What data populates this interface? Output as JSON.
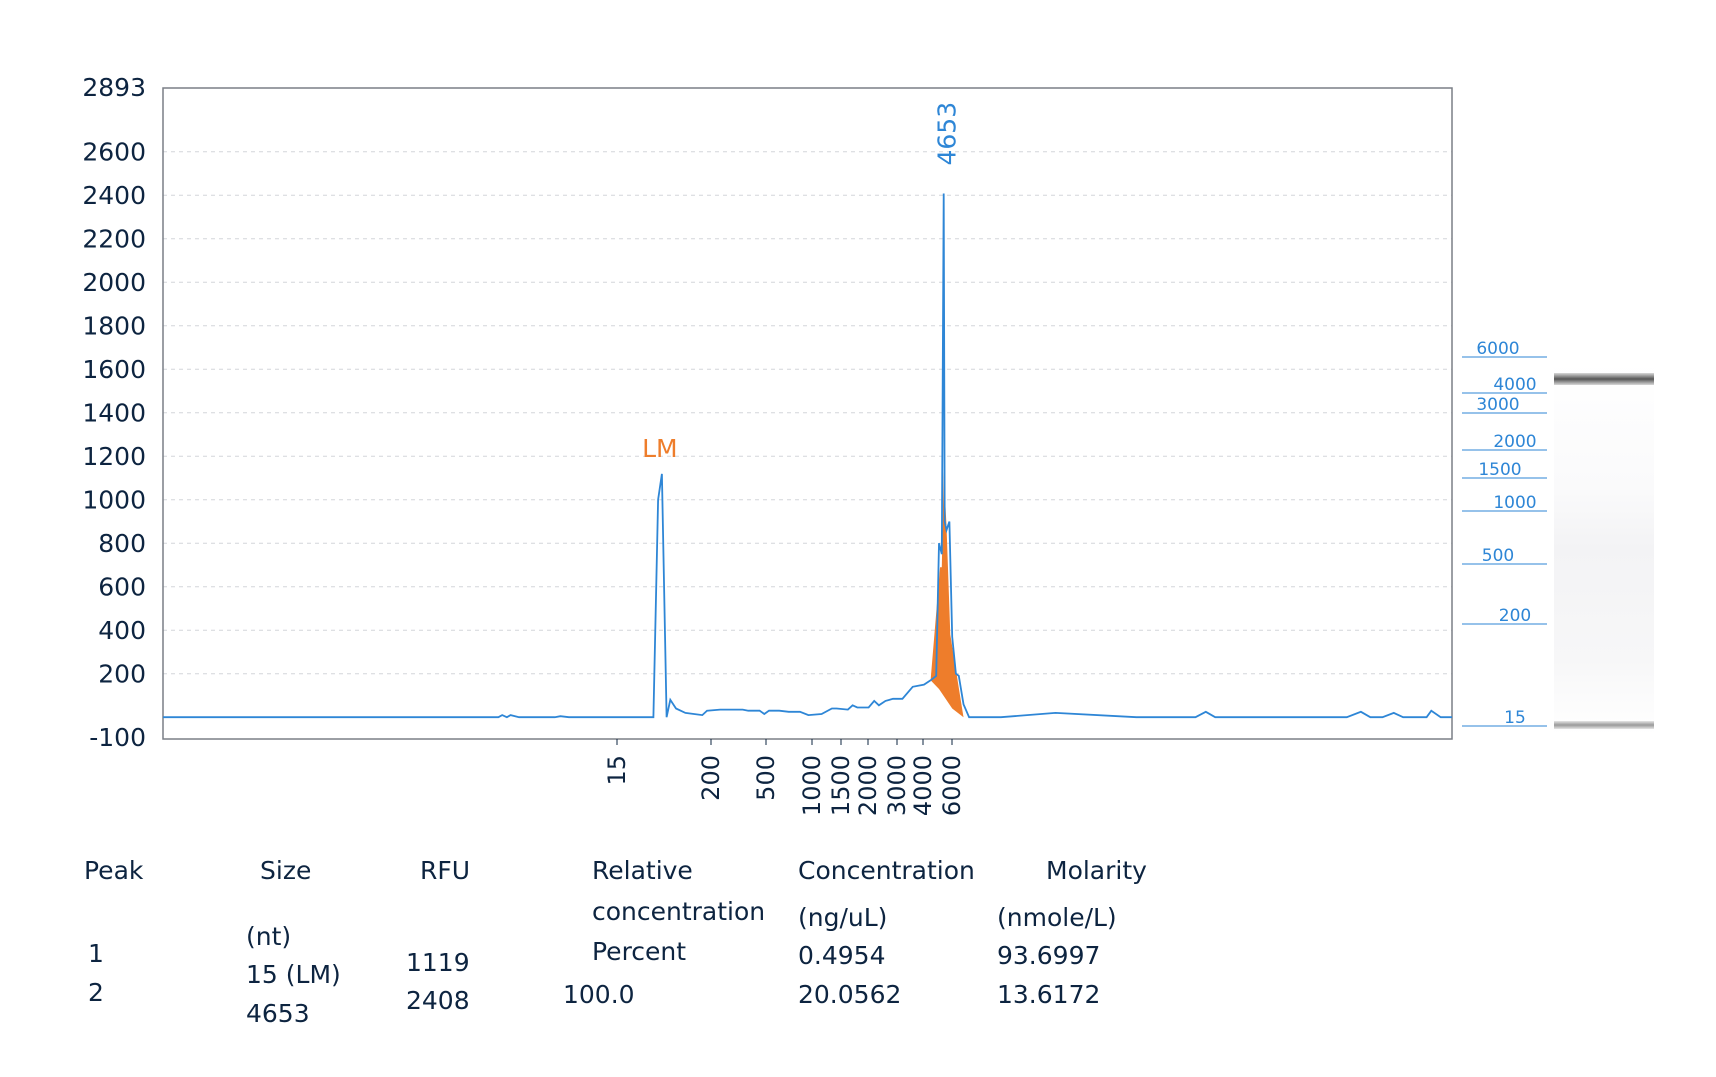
{
  "chart_data": {
    "type": "line",
    "y_axis": {
      "range": [
        -100,
        2893
      ],
      "top_label": "2893",
      "bottom_label": "-100",
      "ticks": [
        200,
        400,
        600,
        800,
        1000,
        1200,
        1400,
        1600,
        1800,
        2000,
        2200,
        2400,
        2600
      ],
      "grid": true
    },
    "x_axis": {
      "scale": "size ladder (nt)",
      "tick_labels": [
        "15",
        "200",
        "500",
        "1000",
        "1500",
        "2000",
        "3000",
        "4000",
        "6000"
      ]
    },
    "series": [
      {
        "color": "#2e86d6",
        "points": [
          [
            0,
            0
          ],
          [
            0.357,
            0
          ],
          [
            0.361,
            10
          ],
          [
            0.366,
            0
          ],
          [
            0.37,
            10
          ],
          [
            0.379,
            0
          ],
          [
            0.417,
            0
          ],
          [
            0.423,
            5
          ],
          [
            0.432,
            0
          ],
          [
            0.522,
            0
          ],
          [
            0.527,
            1000
          ],
          [
            0.531,
            1119
          ],
          [
            0.536,
            0
          ],
          [
            0.54,
            80
          ],
          [
            0.546,
            40
          ],
          [
            0.556,
            20
          ],
          [
            0.574,
            10
          ],
          [
            0.579,
            30
          ],
          [
            0.593,
            35
          ],
          [
            0.617,
            35
          ],
          [
            0.623,
            30
          ],
          [
            0.635,
            30
          ],
          [
            0.64,
            15
          ],
          [
            0.645,
            30
          ],
          [
            0.656,
            30
          ],
          [
            0.666,
            25
          ],
          [
            0.678,
            25
          ],
          [
            0.687,
            10
          ],
          [
            0.701,
            15
          ],
          [
            0.712,
            40
          ],
          [
            0.717,
            40
          ],
          [
            0.729,
            35
          ],
          [
            0.734,
            55
          ],
          [
            0.739,
            45
          ],
          [
            0.751,
            45
          ],
          [
            0.757,
            75
          ],
          [
            0.762,
            55
          ],
          [
            0.769,
            75
          ],
          [
            0.777,
            85
          ],
          [
            0.787,
            85
          ],
          [
            0.798,
            140
          ],
          [
            0.81,
            150
          ],
          [
            0.817,
            170
          ],
          [
            0.823,
            190
          ],
          [
            0.826,
            800
          ],
          [
            0.829,
            750
          ],
          [
            0.831,
            2408
          ],
          [
            0.832,
            900
          ],
          [
            0.834,
            860
          ],
          [
            0.837,
            900
          ],
          [
            0.84,
            370
          ],
          [
            0.844,
            200
          ],
          [
            0.847,
            190
          ],
          [
            0.852,
            60
          ],
          [
            0.858,
            0
          ],
          [
            0.892,
            0
          ],
          [
            0.95,
            20
          ],
          [
            1.036,
            0
          ],
          [
            1.099,
            0
          ],
          [
            1.11,
            25
          ],
          [
            1.12,
            0
          ],
          [
            1.26,
            0
          ],
          [
            1.275,
            25
          ],
          [
            1.285,
            0
          ],
          [
            1.298,
            0
          ],
          [
            1.31,
            20
          ],
          [
            1.32,
            0
          ],
          [
            1.345,
            0
          ],
          [
            1.35,
            30
          ],
          [
            1.36,
            0
          ],
          [
            1.372,
            0
          ]
        ]
      }
    ],
    "filled_peak": {
      "color": "#ee7d2b",
      "points": [
        [
          0.817,
          170
        ],
        [
          0.827,
          690
        ],
        [
          0.829,
          690
        ],
        [
          0.831,
          1130
        ],
        [
          0.834,
          880
        ],
        [
          0.838,
          380
        ],
        [
          0.852,
          0
        ],
        [
          0.84,
          40
        ],
        [
          0.826,
          130
        ],
        [
          0.817,
          170
        ]
      ]
    },
    "annotations": [
      {
        "text": "LM",
        "x": 0.531,
        "y": 1119,
        "color": "#ee7d2b"
      },
      {
        "text": "4653",
        "x": 0.831,
        "y": 2408,
        "color": "#2e86d6"
      }
    ],
    "ladder": {
      "labels": [
        "6000",
        "4000",
        "3000",
        "2000",
        "1500",
        "1000",
        "500",
        "200",
        "15"
      ]
    }
  },
  "table": {
    "headers": {
      "peak": "Peak",
      "size": "Size",
      "size_unit": "(nt)",
      "rfu": "RFU",
      "relative_line1": "Relative",
      "relative_line2": "concentration",
      "relative_line3": "Percent",
      "concentration": "Concentration",
      "concentration_unit": "(ng/uL)",
      "molarity": "Molarity",
      "molarity_unit": "(nmole/L)"
    },
    "rows": [
      {
        "peak": "1",
        "size": "15 (LM)",
        "rfu": "1119",
        "relative": "",
        "concentration": "0.4954",
        "molarity": "93.6997"
      },
      {
        "peak": "2",
        "size": "4653",
        "rfu": "2408",
        "relative": "100.0",
        "concentration": "20.0562",
        "molarity": "13.6172"
      }
    ]
  }
}
